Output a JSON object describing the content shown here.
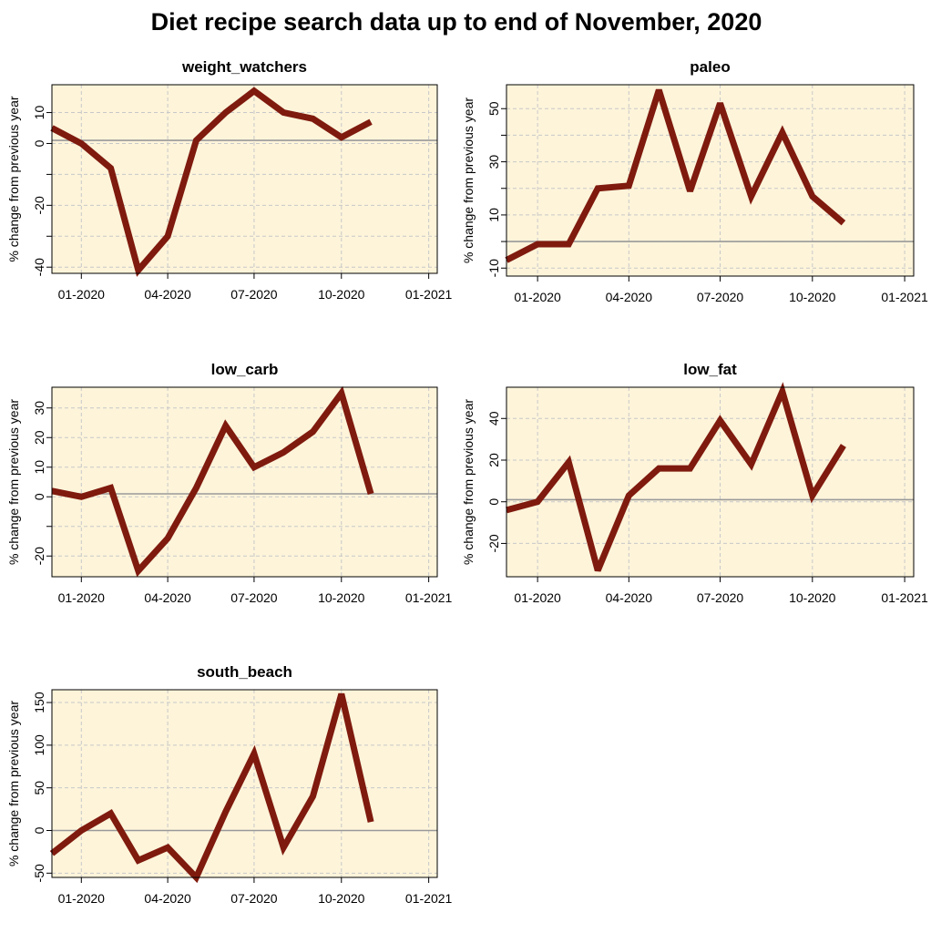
{
  "title": "Diet recipe search data up to end of November, 2020",
  "colors": {
    "panel_background": "#fdf4da",
    "line": "#7f1a0e",
    "zero_line": "#999999",
    "grid": "#c8c8c8"
  },
  "chart_data": [
    {
      "type": "line",
      "title": "weight_watchers",
      "xlabel": "",
      "ylabel": "% change from previous year",
      "x_tick_labels": [
        "01-2020",
        "04-2020",
        "07-2020",
        "10-2020",
        "01-2021"
      ],
      "y_ticks": [
        -40,
        -30,
        -20,
        -10,
        0,
        10
      ],
      "y_tick_labels": [
        "-40",
        "",
        "-20",
        "",
        "0",
        "10"
      ],
      "xlim": [
        "2019-12-01",
        "2021-01-10"
      ],
      "ylim": [
        -42,
        19
      ],
      "grid": true,
      "reference_line": 1,
      "series": [
        {
          "x": [
            "2019-12-01",
            "2020-01-01",
            "2020-02-01",
            "2020-03-01",
            "2020-04-01",
            "2020-05-01",
            "2020-06-01",
            "2020-07-01",
            "2020-08-01",
            "2020-09-01",
            "2020-10-01",
            "2020-11-01"
          ],
          "y": [
            5,
            0,
            -8,
            -41,
            -30,
            1,
            10,
            17,
            10,
            8,
            2,
            7
          ]
        }
      ]
    },
    {
      "type": "line",
      "title": "paleo",
      "xlabel": "",
      "ylabel": "% change from previous year",
      "x_tick_labels": [
        "01-2020",
        "04-2020",
        "07-2020",
        "10-2020",
        "01-2021"
      ],
      "y_ticks": [
        -10,
        0,
        10,
        20,
        30,
        40,
        50
      ],
      "y_tick_labels": [
        "-10",
        "",
        "10",
        "",
        "30",
        "",
        "50"
      ],
      "xlim": [
        "2019-12-01",
        "2021-01-10"
      ],
      "ylim": [
        -13,
        59
      ],
      "grid": true,
      "reference_line": 0,
      "series": [
        {
          "x": [
            "2019-12-01",
            "2020-01-01",
            "2020-02-01",
            "2020-03-01",
            "2020-04-01",
            "2020-05-01",
            "2020-06-01",
            "2020-07-01",
            "2020-08-01",
            "2020-09-01",
            "2020-10-01",
            "2020-11-01"
          ],
          "y": [
            -7,
            -1,
            -1,
            20,
            21,
            57,
            19,
            52,
            17,
            41,
            17,
            7
          ]
        }
      ]
    },
    {
      "type": "line",
      "title": "low_carb",
      "xlabel": "",
      "ylabel": "% change from previous year",
      "x_tick_labels": [
        "01-2020",
        "04-2020",
        "07-2020",
        "10-2020",
        "01-2021"
      ],
      "y_ticks": [
        -20,
        -10,
        0,
        10,
        20,
        30
      ],
      "y_tick_labels": [
        "-20",
        "",
        "0",
        "10",
        "20",
        "30"
      ],
      "xlim": [
        "2019-12-01",
        "2021-01-10"
      ],
      "ylim": [
        -27,
        37
      ],
      "grid": true,
      "reference_line": 1,
      "series": [
        {
          "x": [
            "2019-12-01",
            "2020-01-01",
            "2020-02-01",
            "2020-03-01",
            "2020-04-01",
            "2020-05-01",
            "2020-06-01",
            "2020-07-01",
            "2020-08-01",
            "2020-09-01",
            "2020-10-01",
            "2020-11-01"
          ],
          "y": [
            2,
            0,
            3,
            -25,
            -14,
            3,
            24,
            10,
            15,
            22,
            35,
            1
          ]
        }
      ]
    },
    {
      "type": "line",
      "title": "low_fat",
      "xlabel": "",
      "ylabel": "% change from previous year",
      "x_tick_labels": [
        "01-2020",
        "04-2020",
        "07-2020",
        "10-2020",
        "01-2021"
      ],
      "y_ticks": [
        -20,
        0,
        20,
        40
      ],
      "y_tick_labels": [
        "-20",
        "0",
        "20",
        "40"
      ],
      "xlim": [
        "2019-12-01",
        "2021-01-10"
      ],
      "ylim": [
        -36,
        55
      ],
      "grid": true,
      "reference_line": 1,
      "series": [
        {
          "x": [
            "2019-12-01",
            "2020-01-01",
            "2020-02-01",
            "2020-03-01",
            "2020-04-01",
            "2020-05-01",
            "2020-06-01",
            "2020-07-01",
            "2020-08-01",
            "2020-09-01",
            "2020-10-01",
            "2020-11-01"
          ],
          "y": [
            -4,
            0,
            19,
            -33,
            3,
            16,
            16,
            39,
            18,
            53,
            3,
            27
          ]
        }
      ]
    },
    {
      "type": "line",
      "title": "south_beach",
      "xlabel": "",
      "ylabel": "% change from previous year",
      "x_tick_labels": [
        "01-2020",
        "04-2020",
        "07-2020",
        "10-2020",
        "01-2021"
      ],
      "y_ticks": [
        -50,
        0,
        50,
        100,
        150
      ],
      "y_tick_labels": [
        "-50",
        "0",
        "50",
        "100",
        "150"
      ],
      "xlim": [
        "2019-12-01",
        "2021-01-10"
      ],
      "ylim": [
        -55,
        165
      ],
      "grid": true,
      "reference_line": 0,
      "series": [
        {
          "x": [
            "2019-12-01",
            "2020-01-01",
            "2020-02-01",
            "2020-03-01",
            "2020-04-01",
            "2020-05-01",
            "2020-06-01",
            "2020-07-01",
            "2020-08-01",
            "2020-09-01",
            "2020-10-01",
            "2020-11-01"
          ],
          "y": [
            -27,
            0,
            20,
            -35,
            -20,
            -55,
            22,
            90,
            -20,
            40,
            160,
            10
          ]
        }
      ]
    }
  ]
}
